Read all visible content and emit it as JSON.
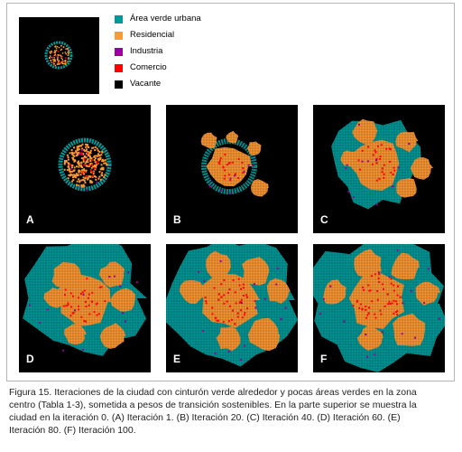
{
  "figure": {
    "legend": [
      {
        "label": "Área verde urbana",
        "color": "#009999"
      },
      {
        "label": "Residencial",
        "color": "#ff9933"
      },
      {
        "label": "Industria",
        "color": "#990099"
      },
      {
        "label": "Comercio",
        "color": "#ff0000"
      },
      {
        "label": "Vacante",
        "color": "#000000"
      }
    ],
    "panels": [
      {
        "id": "initial",
        "label": "",
        "iteration": 0
      },
      {
        "id": "A",
        "label": "A",
        "iteration": 1
      },
      {
        "id": "B",
        "label": "B",
        "iteration": 20
      },
      {
        "id": "C",
        "label": "C",
        "iteration": 40
      },
      {
        "id": "D",
        "label": "D",
        "iteration": 60
      },
      {
        "id": "E",
        "label": "E",
        "iteration": 80
      },
      {
        "id": "F",
        "label": "F",
        "iteration": 100
      }
    ],
    "caption_lines": [
      "Figura 15. Iteraciones de la ciudad con cinturón verde alrededor y pocas áreas verdes en la zona",
      "centro (Tabla 1-3), sometida a pesos de transición sostenibles. En la parte superior se muestra la",
      "ciudad en la iteración 0. (A) Iteración 1. (B) Iteración 20. (C) Iteración 40. (D) Iteración 60. (E)",
      "Iteración 80. (F) Iteración 100."
    ]
  }
}
